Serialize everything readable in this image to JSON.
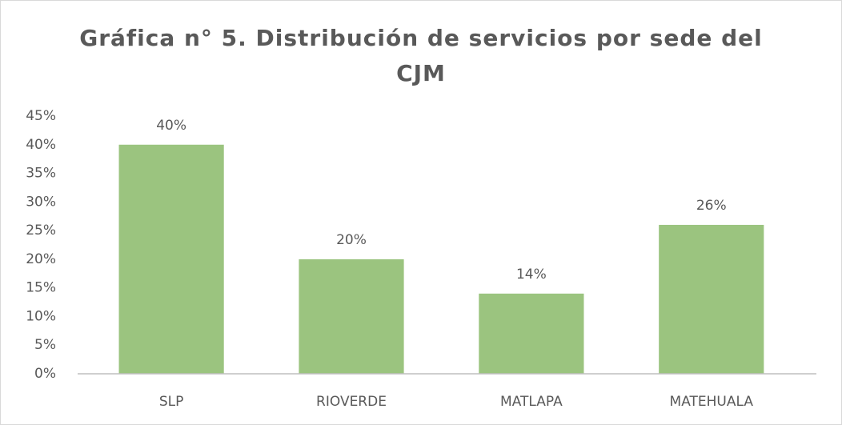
{
  "chart_data": {
    "type": "bar",
    "title": "Gráfica n° 5. Distribución de servicios por sede del CJM",
    "categories": [
      "SLP",
      "RIOVERDE",
      "MATLAPA",
      "MATEHUALA"
    ],
    "values": [
      40,
      20,
      14,
      26
    ],
    "value_labels": [
      "40%",
      "20%",
      "14%",
      "26%"
    ],
    "color": "#9bc47f",
    "ylim": [
      0,
      45
    ],
    "yticks": [
      {
        "value": 0,
        "label": "0%"
      },
      {
        "value": 5,
        "label": "5%"
      },
      {
        "value": 10,
        "label": "10%"
      },
      {
        "value": 15,
        "label": "15%"
      },
      {
        "value": 20,
        "label": "20%"
      },
      {
        "value": 25,
        "label": "25%"
      },
      {
        "value": 30,
        "label": "30%"
      },
      {
        "value": 35,
        "label": "35%"
      },
      {
        "value": 40,
        "label": "40%"
      },
      {
        "value": 45,
        "label": "45%"
      }
    ],
    "grid": false
  }
}
